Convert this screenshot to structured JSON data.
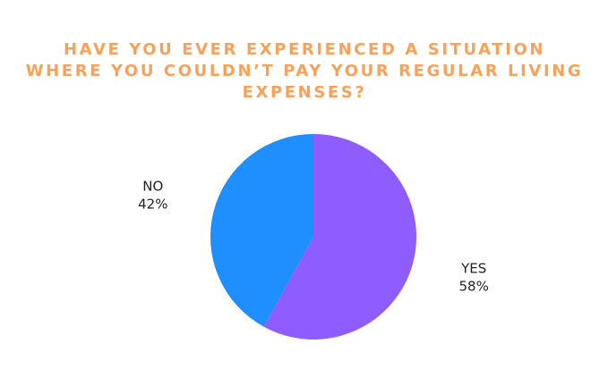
{
  "chart_data": {
    "type": "pie",
    "title": "HAVE YOU EVER EXPERIENCED A SITUATION WHERE YOU COULDN’T PAY YOUR REGULAR LIVING EXPENSES?",
    "categories": [
      "YES",
      "NO"
    ],
    "values": [
      58,
      42
    ],
    "value_labels": [
      "58%",
      "42%"
    ],
    "colors": [
      "#8f5cff",
      "#1f8fff"
    ]
  }
}
